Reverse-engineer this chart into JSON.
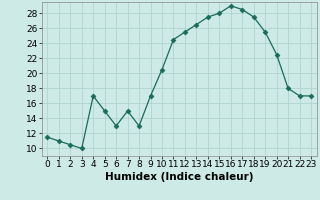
{
  "x": [
    0,
    1,
    2,
    3,
    4,
    5,
    6,
    7,
    8,
    9,
    10,
    11,
    12,
    13,
    14,
    15,
    16,
    17,
    18,
    19,
    20,
    21,
    22,
    23
  ],
  "y": [
    11.5,
    11.0,
    10.5,
    10.0,
    17.0,
    15.0,
    13.0,
    15.0,
    13.0,
    17.0,
    20.5,
    24.5,
    25.5,
    26.5,
    27.5,
    28.0,
    29.0,
    28.5,
    27.5,
    25.5,
    22.5,
    18.0,
    17.0,
    17.0
  ],
  "line_color": "#1a6b5a",
  "marker": "D",
  "marker_size": 2.5,
  "bg_color": "#cdeae6",
  "grid_color": "#b0d4cf",
  "xlabel": "Humidex (Indice chaleur)",
  "xlabel_fontsize": 7.5,
  "ylabel_ticks": [
    10,
    12,
    14,
    16,
    18,
    20,
    22,
    24,
    26,
    28
  ],
  "xlim": [
    -0.5,
    23.5
  ],
  "ylim": [
    9.0,
    29.5
  ],
  "xticks": [
    0,
    1,
    2,
    3,
    4,
    5,
    6,
    7,
    8,
    9,
    10,
    11,
    12,
    13,
    14,
    15,
    16,
    17,
    18,
    19,
    20,
    21,
    22,
    23
  ],
  "tick_fontsize": 6.5
}
